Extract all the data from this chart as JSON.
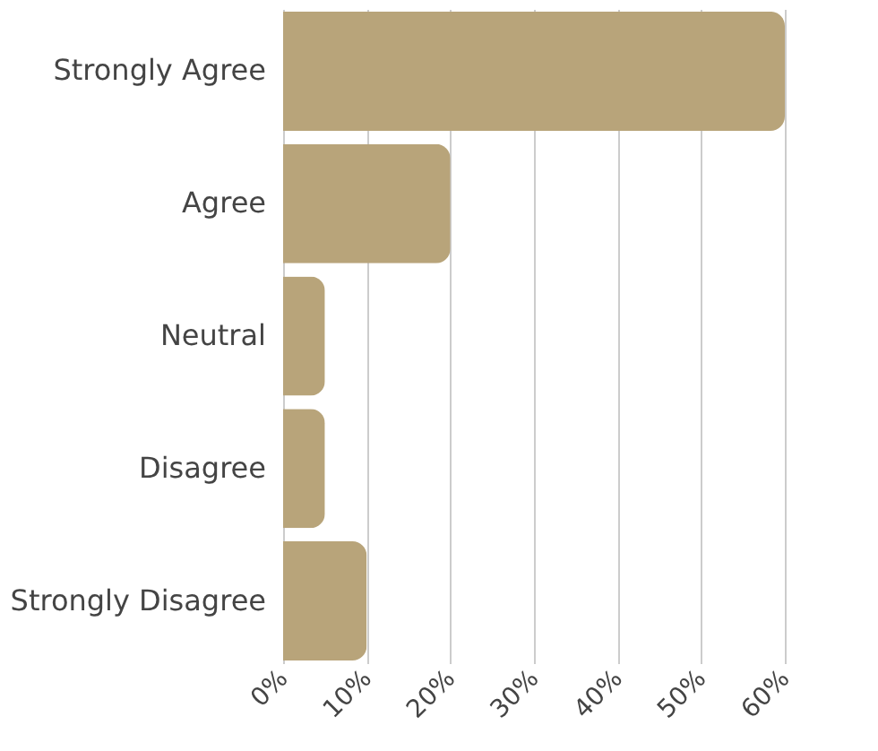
{
  "chart_data": {
    "type": "bar",
    "orientation": "horizontal",
    "categories": [
      "Strongly Agree",
      "Agree",
      "Neutral",
      "Disagree",
      "Strongly Disagree"
    ],
    "values": [
      60,
      20,
      5,
      5,
      10
    ],
    "color": "#b8a47a",
    "xlim": [
      0,
      60
    ],
    "xticks": [
      {
        "value": 0,
        "label": "0%"
      },
      {
        "value": 10,
        "label": "10%"
      },
      {
        "value": 20,
        "label": "20%"
      },
      {
        "value": 30,
        "label": "30%"
      },
      {
        "value": 40,
        "label": "40%"
      },
      {
        "value": 50,
        "label": "50%"
      },
      {
        "value": 60,
        "label": "60%"
      }
    ],
    "grid": "x"
  }
}
